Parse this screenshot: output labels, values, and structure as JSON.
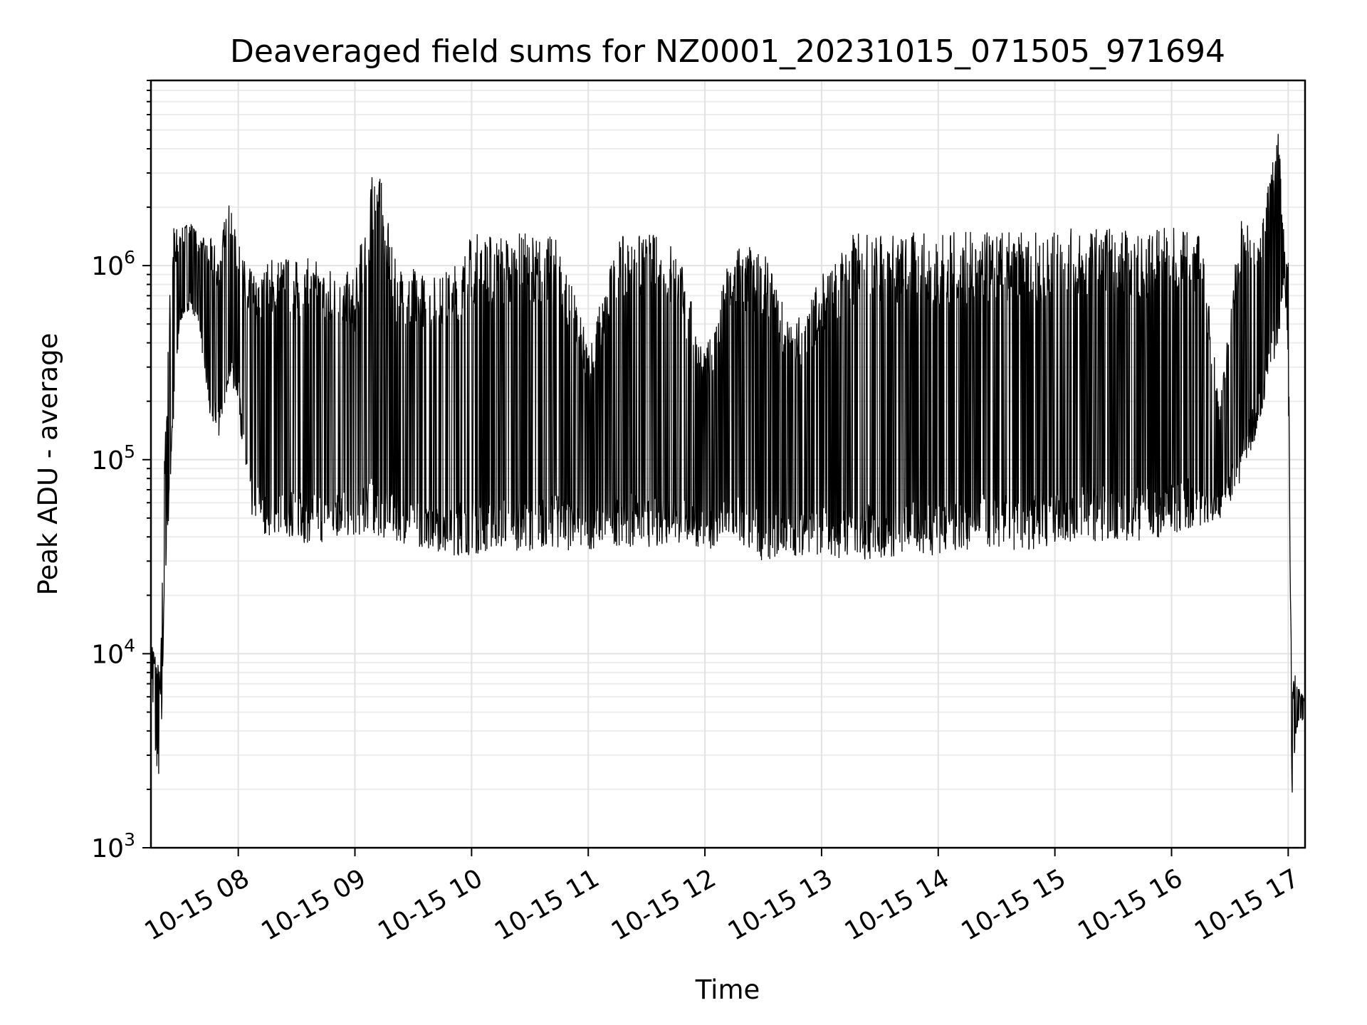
{
  "chart_data": {
    "type": "line",
    "title": "Deaveraged field sums for NZ0001_20231015_071505_971694",
    "xlabel": "Time",
    "ylabel": "Peak ADU - average",
    "yscale": "log",
    "ylim": [
      1000,
      9000000
    ],
    "xlim": [
      "2023-10-15 07:15:05",
      "2023-10-15 17:08:40"
    ],
    "grid": true,
    "grid_style": "both-major-and-minor",
    "x_tick_labels": [
      "10-15 08",
      "10-15 09",
      "10-15 10",
      "10-15 11",
      "10-15 12",
      "10-15 13",
      "10-15 14",
      "10-15 15",
      "10-15 16",
      "10-15 17"
    ],
    "x_ticks": [
      "2023-10-15 08:00",
      "2023-10-15 09:00",
      "2023-10-15 10:00",
      "2023-10-15 11:00",
      "2023-10-15 12:00",
      "2023-10-15 13:00",
      "2023-10-15 14:00",
      "2023-10-15 15:00",
      "2023-10-15 16:00",
      "2023-10-15 17:00"
    ],
    "y_ticks": [
      {
        "value": 1000,
        "base": "10",
        "exp": "3"
      },
      {
        "value": 10000,
        "base": "10",
        "exp": "4"
      },
      {
        "value": 100000,
        "base": "10",
        "exp": "5"
      },
      {
        "value": 1000000,
        "base": "10",
        "exp": "6"
      }
    ],
    "series": [
      {
        "color": "#000000",
        "x": [
          "2023-10-15 07:15",
          "2023-10-15 07:17",
          "2023-10-15 07:20",
          "2023-10-15 07:22",
          "2023-10-15 07:26",
          "2023-10-15 07:30",
          "2023-10-15 07:35",
          "2023-10-15 07:40",
          "2023-10-15 07:45",
          "2023-10-15 07:50",
          "2023-10-15 07:55",
          "2023-10-15 08:00",
          "2023-10-15 08:05",
          "2023-10-15 08:10",
          "2023-10-15 08:15",
          "2023-10-15 08:20",
          "2023-10-15 08:30",
          "2023-10-15 08:40",
          "2023-10-15 08:50",
          "2023-10-15 09:00",
          "2023-10-15 09:11",
          "2023-10-15 09:20",
          "2023-10-15 09:30",
          "2023-10-15 09:40",
          "2023-10-15 09:50",
          "2023-10-15 10:00",
          "2023-10-15 10:15",
          "2023-10-15 10:30",
          "2023-10-15 10:45",
          "2023-10-15 11:00",
          "2023-10-15 11:15",
          "2023-10-15 11:30",
          "2023-10-15 11:45",
          "2023-10-15 12:00",
          "2023-10-15 12:15",
          "2023-10-15 12:30",
          "2023-10-15 12:45",
          "2023-10-15 13:00",
          "2023-10-15 13:15",
          "2023-10-15 13:30",
          "2023-10-15 13:45",
          "2023-10-15 14:00",
          "2023-10-15 14:15",
          "2023-10-15 14:30",
          "2023-10-15 14:45",
          "2023-10-15 15:00",
          "2023-10-15 15:15",
          "2023-10-15 15:30",
          "2023-10-15 15:45",
          "2023-10-15 16:00",
          "2023-10-15 16:15",
          "2023-10-15 16:25",
          "2023-10-15 16:35",
          "2023-10-15 16:45",
          "2023-10-15 16:55",
          "2023-10-15 16:58",
          "2023-10-15 17:00",
          "2023-10-15 17:01",
          "2023-10-15 17:02",
          "2023-10-15 17:04",
          "2023-10-15 17:06",
          "2023-10-15 17:08"
        ],
        "y_low": [
          10000,
          3000,
          2000,
          20000,
          100000,
          500000,
          600000,
          500000,
          150000,
          130000,
          250000,
          200000,
          50000,
          45000,
          40000,
          40000,
          38000,
          36000,
          38000,
          40000,
          40000,
          38000,
          36000,
          34000,
          32000,
          32000,
          34000,
          34000,
          34000,
          34000,
          36000,
          35000,
          36000,
          35000,
          34000,
          30000,
          32000,
          32000,
          30000,
          30000,
          32000,
          32000,
          34000,
          34000,
          34000,
          36000,
          38000,
          38000,
          38000,
          40000,
          45000,
          50000,
          70000,
          150000,
          400000,
          900000,
          300000,
          20000,
          1500,
          4000,
          4500,
          4500
        ],
        "y_high": [
          12000,
          11000,
          8000,
          100000,
          1800000,
          1500000,
          1800000,
          1400000,
          1400000,
          1300000,
          2200000,
          1300000,
          1000000,
          900000,
          1100000,
          1200000,
          1100000,
          1100000,
          1000000,
          900000,
          4000000,
          1100000,
          1000000,
          900000,
          1000000,
          1500000,
          1500000,
          1500000,
          1400000,
          400000,
          1400000,
          1500000,
          1400000,
          350000,
          1400000,
          1200000,
          500000,
          900000,
          1500000,
          1500000,
          1500000,
          1500000,
          1500000,
          1500000,
          1500000,
          1500000,
          1600000,
          1600000,
          1500000,
          1600000,
          1500000,
          200000,
          1800000,
          1400000,
          5500000,
          1300000,
          1200000,
          25000,
          8000,
          8000,
          6500,
          6000
        ]
      }
    ],
    "annotations": []
  }
}
